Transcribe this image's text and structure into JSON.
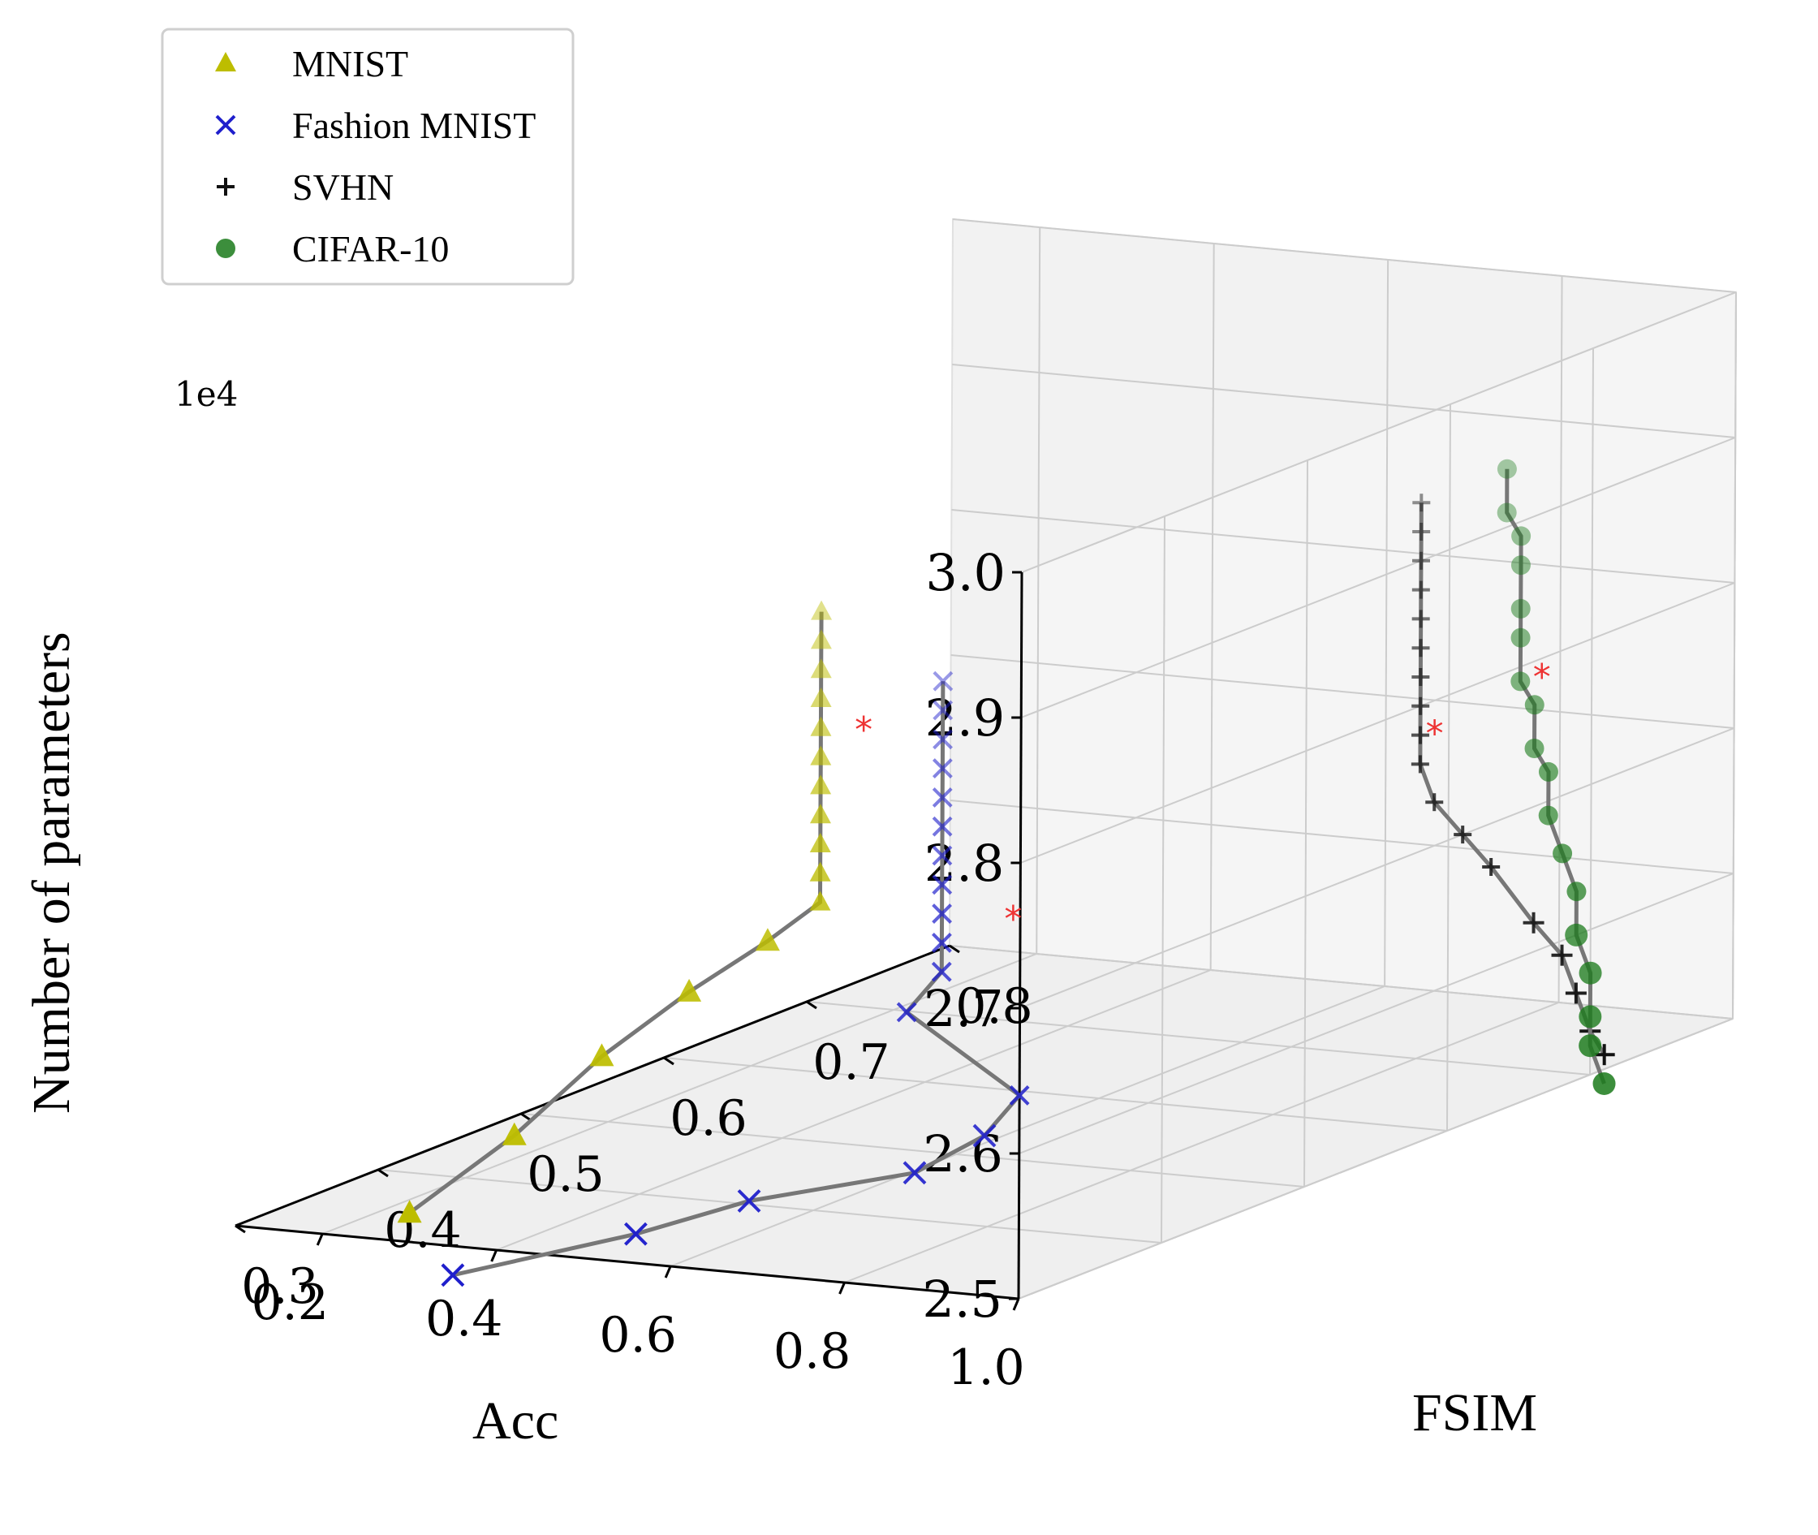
{
  "chart_data": {
    "type": "scatter3d",
    "title": "",
    "xlabel": "Acc",
    "ylabel": "FSIM",
    "zlabel": "Number of parameters",
    "z_offset_label": "1e4",
    "xlim": [
      0.1,
      1.0
    ],
    "ylim": [
      0.3,
      0.8
    ],
    "zlim": [
      2.5,
      3.0
    ],
    "x_ticks": [
      "1.0",
      "0.8",
      "0.6",
      "0.4",
      "0.2"
    ],
    "y_ticks": [
      "0.3",
      "0.4",
      "0.5",
      "0.6",
      "0.7",
      "0.8"
    ],
    "z_ticks": [
      "2.5",
      "2.6",
      "2.7",
      "2.8",
      "2.9",
      "3.0"
    ],
    "grid": true,
    "legend_position": "top-left",
    "series": [
      {
        "name": "MNIST",
        "marker": "triangle",
        "color": "#bdbd00",
        "acc": [
          0.77,
          0.77,
          0.77,
          0.77,
          0.77,
          0.77,
          0.77,
          0.77,
          0.77,
          0.77,
          0.77,
          0.71,
          0.62,
          0.52,
          0.42,
          0.3
        ],
        "fsim": [
          0.3,
          0.3,
          0.3,
          0.3,
          0.3,
          0.3,
          0.3,
          0.3,
          0.3,
          0.3,
          0.3,
          0.3,
          0.3,
          0.3,
          0.3,
          0.3
        ],
        "params": [
          2.96,
          2.94,
          2.92,
          2.9,
          2.88,
          2.86,
          2.84,
          2.82,
          2.8,
          2.78,
          2.76,
          2.73,
          2.69,
          2.64,
          2.58,
          2.52
        ],
        "optimum": {
          "acc": 0.77,
          "fsim": 0.33,
          "params": 2.87
        }
      },
      {
        "name": "Fashion MNIST",
        "marker": "x",
        "color": "#1f1fcc",
        "acc": [
          0.91,
          0.91,
          0.91,
          0.91,
          0.91,
          0.91,
          0.91,
          0.91,
          0.91,
          0.91,
          0.91,
          0.87,
          1.0,
          0.96,
          0.88,
          0.69,
          0.56,
          0.35
        ],
        "fsim": [
          0.3,
          0.3,
          0.3,
          0.3,
          0.3,
          0.3,
          0.3,
          0.3,
          0.3,
          0.3,
          0.3,
          0.3,
          0.3,
          0.3,
          0.3,
          0.3,
          0.3,
          0.3
        ],
        "params": [
          2.92,
          2.9,
          2.88,
          2.86,
          2.84,
          2.82,
          2.8,
          2.78,
          2.76,
          2.74,
          2.72,
          2.69,
          2.64,
          2.61,
          2.58,
          2.55,
          2.52,
          2.48
        ],
        "optimum": {
          "acc": 0.91,
          "fsim": 0.35,
          "params": 2.74
        }
      },
      {
        "name": "SVHN",
        "marker": "plus",
        "color": "#111111",
        "acc": [
          1.0,
          1.0,
          1.0,
          1.0,
          1.0,
          1.0,
          1.0,
          1.0,
          1.0,
          1.0,
          1.0,
          1.0,
          1.0,
          1.0,
          1.0,
          1.0,
          1.0,
          1.0
        ],
        "fsim": [
          0.58,
          0.58,
          0.58,
          0.58,
          0.58,
          0.58,
          0.58,
          0.58,
          0.58,
          0.58,
          0.59,
          0.61,
          0.63,
          0.66,
          0.68,
          0.69,
          0.7,
          0.71
        ],
        "params": [
          2.94,
          2.92,
          2.9,
          2.88,
          2.86,
          2.84,
          2.82,
          2.8,
          2.78,
          2.76,
          2.73,
          2.7,
          2.67,
          2.62,
          2.59,
          2.56,
          2.53,
          2.51
        ],
        "optimum": {
          "acc": 1.0,
          "fsim": 0.59,
          "params": 2.78
        }
      },
      {
        "name": "CIFAR-10",
        "marker": "circle",
        "color": "#1a7a1a",
        "acc": [
          1.0,
          1.0,
          1.0,
          1.0,
          1.0,
          1.0,
          1.0,
          1.0,
          1.0,
          1.0,
          1.0,
          1.0,
          1.0,
          1.0,
          1.0,
          1.0,
          1.0,
          1.0
        ],
        "fsim": [
          0.64,
          0.64,
          0.65,
          0.65,
          0.65,
          0.65,
          0.65,
          0.66,
          0.66,
          0.67,
          0.67,
          0.68,
          0.69,
          0.69,
          0.7,
          0.7,
          0.7,
          0.71
        ],
        "params": [
          2.94,
          2.91,
          2.89,
          2.87,
          2.84,
          2.82,
          2.79,
          2.77,
          2.74,
          2.72,
          2.69,
          2.66,
          2.63,
          2.6,
          2.57,
          2.54,
          2.52,
          2.49
        ],
        "optimum": {
          "acc": 1.0,
          "fsim": 0.665,
          "params": 2.79
        }
      }
    ]
  }
}
